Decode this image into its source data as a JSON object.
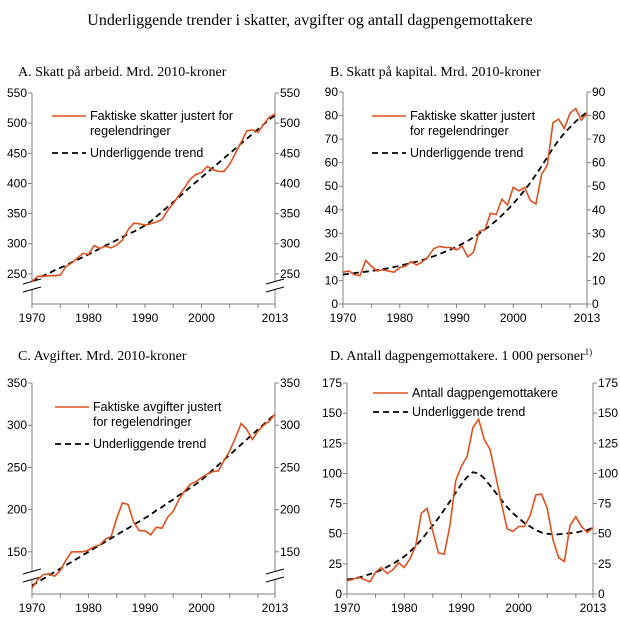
{
  "title": "Underliggende trender i skatter, avgifter og antall dagpengemottakere",
  "colors": {
    "actual": "#E0501E",
    "trend": "#000000",
    "axis": "#808080"
  },
  "chart_data": [
    {
      "type": "line",
      "title": "A.  Skatt på arbeid. Mrd. 2010-kroner",
      "xlim": [
        1970,
        2013
      ],
      "xticks": [
        1970,
        1980,
        1990,
        2000,
        2013
      ],
      "ylim": [
        200,
        550
      ],
      "yticks": [
        250,
        300,
        350,
        400,
        450,
        500,
        550
      ],
      "axis_break": true,
      "start_year": 1970,
      "series": [
        {
          "name": "Faktiske skatter justert for regelendringer",
          "legend_lines": [
            "Faktiske skatter justert for",
            "regelendringer"
          ],
          "style": "solid",
          "values": [
            237,
            246,
            246,
            247,
            247,
            248,
            262,
            268,
            276,
            284,
            282,
            297,
            292,
            296,
            293,
            298,
            306,
            323,
            334,
            333,
            331,
            333,
            336,
            340,
            355,
            367,
            380,
            393,
            407,
            415,
            418,
            428,
            423,
            420,
            420,
            432,
            450,
            468,
            487,
            489,
            485,
            498,
            510,
            515
          ]
        },
        {
          "name": "Underliggende trend",
          "legend_lines": [
            "Underliggende trend"
          ],
          "style": "dashed",
          "values": [
            238,
            242,
            247,
            251,
            256,
            260,
            264,
            269,
            273,
            278,
            282,
            287,
            292,
            297,
            301,
            306,
            311,
            316,
            320,
            325,
            330,
            337,
            345,
            353,
            361,
            369,
            377,
            386,
            394,
            402,
            410,
            418,
            426,
            434,
            442,
            450,
            458,
            466,
            474,
            482,
            490,
            498,
            506,
            513
          ]
        }
      ]
    },
    {
      "type": "line",
      "title": "B.  Skatt på kapital. Mrd. 2010-kroner",
      "xlim": [
        1970,
        2013
      ],
      "xticks": [
        1970,
        1980,
        1990,
        2000,
        2013
      ],
      "ylim": [
        0,
        90
      ],
      "yticks": [
        0,
        10,
        20,
        30,
        40,
        50,
        60,
        70,
        80,
        90
      ],
      "axis_break": false,
      "start_year": 1970,
      "series": [
        {
          "name": "Faktiske skatter justert for regelendringer",
          "legend_lines": [
            "Faktiske skatter justert",
            "for regelendringer"
          ],
          "style": "solid",
          "values": [
            13.5,
            14,
            12.5,
            12,
            18.5,
            16,
            14,
            14.5,
            14,
            13.5,
            15.5,
            16,
            18,
            16.5,
            18,
            20,
            23.5,
            24.5,
            24,
            24,
            23,
            24.5,
            20,
            22,
            31,
            31.5,
            38.5,
            38,
            44.5,
            42,
            49.5,
            48,
            49.5,
            44,
            42.5,
            55,
            59,
            77,
            78.5,
            74.5,
            81,
            83,
            78,
            81
          ]
        },
        {
          "name": "Underliggende trend",
          "legend_lines": [
            "Underliggende trend"
          ],
          "style": "dashed",
          "values": [
            12.5,
            12.8,
            13.1,
            13.4,
            13.7,
            14,
            14.4,
            14.8,
            15.2,
            15.7,
            16.2,
            16.8,
            17.4,
            18,
            18.7,
            19.5,
            20.3,
            21.2,
            22.2,
            23.2,
            24.3,
            25.5,
            26.8,
            28.3,
            29.9,
            31.6,
            33.4,
            35.4,
            37.6,
            40,
            42.6,
            45.3,
            48.3,
            51.5,
            54.9,
            58.5,
            62.3,
            66.2,
            69.5,
            72.5,
            75,
            77.5,
            79.5,
            81.5
          ]
        }
      ]
    },
    {
      "type": "line",
      "title": "C.  Avgifter. Mrd. 2010-kroner",
      "xlim": [
        1970,
        2013
      ],
      "xticks": [
        1970,
        1980,
        1990,
        2000,
        2013
      ],
      "ylim": [
        100,
        350
      ],
      "yticks": [
        150,
        200,
        250,
        300,
        350
      ],
      "axis_break": true,
      "start_year": 1970,
      "series": [
        {
          "name": "Faktiske avgifter justert for regelendringer",
          "legend_lines": [
            "Faktiske avgifter justert",
            "for regelendringer"
          ],
          "style": "solid",
          "values": [
            107,
            117,
            123,
            124,
            121,
            128,
            140,
            150,
            150,
            150,
            152,
            156,
            158,
            165,
            168,
            190,
            208,
            206,
            185,
            175,
            175,
            170,
            179,
            178,
            191,
            198,
            212,
            222,
            230,
            233,
            238,
            242,
            245,
            246,
            258,
            270,
            285,
            302,
            295,
            283,
            293,
            300,
            305,
            313
          ]
        },
        {
          "name": "Underliggende trend",
          "legend_lines": [
            "Underliggende trend"
          ],
          "style": "dashed",
          "values": [
            110,
            114,
            118,
            122,
            126,
            130,
            134,
            138,
            142,
            146,
            150,
            154,
            158,
            162,
            166,
            170,
            174,
            178,
            182,
            186,
            190,
            194,
            199,
            203,
            208,
            212,
            217,
            221,
            226,
            230,
            235,
            241,
            247,
            253,
            259,
            265,
            271,
            277,
            283,
            289,
            295,
            301,
            307,
            313
          ]
        }
      ]
    },
    {
      "type": "line",
      "title": "D.  Antall dagpengemottakere. 1 000 personer",
      "title_sup": "1)",
      "xlim": [
        1970,
        2013
      ],
      "xticks": [
        1970,
        1980,
        1990,
        2000,
        2013
      ],
      "ylim": [
        0,
        175
      ],
      "yticks": [
        0,
        25,
        50,
        75,
        100,
        125,
        150,
        175
      ],
      "axis_break": false,
      "start_year": 1970,
      "series": [
        {
          "name": "Antall dagpengemottakere",
          "legend_lines": [
            "Antall dagpengemottakere"
          ],
          "style": "solid",
          "values": [
            11,
            12,
            14,
            12,
            10,
            18,
            22,
            17,
            20,
            26,
            22,
            29,
            40,
            67,
            71,
            52,
            34,
            33,
            57,
            94,
            106,
            114,
            138,
            145,
            128,
            120,
            98,
            75,
            54,
            52,
            56,
            56,
            65,
            82,
            83,
            71,
            45,
            30,
            27,
            57,
            64,
            56,
            51,
            55
          ]
        },
        {
          "name": "Underliggende trend",
          "legend_lines": [
            "Underliggende trend"
          ],
          "style": "dashed",
          "values": [
            12,
            12.5,
            13.5,
            15,
            16.5,
            18,
            20,
            22.5,
            25,
            28,
            31,
            35,
            40,
            45,
            51,
            57,
            63,
            70,
            77,
            84,
            91,
            97,
            101,
            100,
            96,
            90,
            84,
            78,
            72,
            67,
            63,
            59,
            56,
            53,
            51,
            50,
            49.5,
            49.5,
            50,
            50.5,
            51,
            52,
            53,
            55
          ]
        }
      ]
    }
  ]
}
